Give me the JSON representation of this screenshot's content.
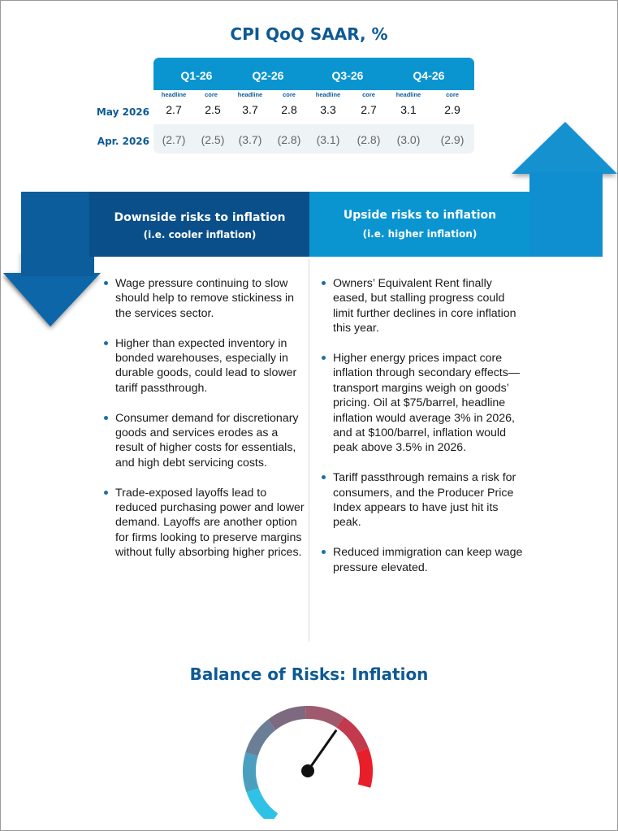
{
  "table": {
    "title": "CPI QoQ SAAR, %",
    "quarters": [
      "Q1-26",
      "Q2-26",
      "Q3-26",
      "Q4-26"
    ],
    "sub_headers": [
      "headline",
      "core",
      "headline",
      "core",
      "headline",
      "core",
      "headline",
      "core"
    ],
    "rows": [
      {
        "label": "May 2026",
        "values": [
          "2.7",
          "2.5",
          "3.7",
          "2.8",
          "3.3",
          "2.7",
          "3.1",
          "2.9"
        ]
      },
      {
        "label": "Apr. 2026",
        "values": [
          "(2.7)",
          "(2.5)",
          "(3.7)",
          "(2.8)",
          "(3.1)",
          "(2.8)",
          "(3.0)",
          "(2.9)"
        ]
      }
    ]
  },
  "downside": {
    "title": "Downside risks to inflation",
    "subtitle": "(i.e. cooler inflation)",
    "items": [
      "Wage pressure continuing to slow should help to remove stickiness in the services sector.",
      "Higher than expected inventory in bonded warehouses, especially in durable goods, could lead to slower tariff passthrough.",
      "Consumer demand for discretionary goods and services erodes as a result of higher costs for essentials, and high debt servicing costs.",
      "Trade-exposed layoffs lead to reduced purchasing power and lower demand. Layoffs are another option for firms looking to preserve margins without fully absorbing higher prices."
    ]
  },
  "upside": {
    "title": "Upside risks to inflation",
    "subtitle": "(i.e. higher inflation)",
    "items": [
      "Owners’ Equivalent Rent finally eased, but stalling progress could limit further declines in core inflation this year.",
      "Higher energy prices impact core inflation through secondary effects—transport margins weigh on goods’ pricing. Oil at $75/barrel, headline inflation would average 3% in 2026, and at $100/barrel, inflation would peak above 3.5% in 2026.",
      "Tariff passthrough remains a risk for consumers, and the Producer Price Index appears to have just hit its peak.",
      "Reduced immigration can keep wage pressure elevated."
    ]
  },
  "gauge": {
    "title": "Balance of Risks: Inflation",
    "level": 0.72,
    "colors": [
      "#2fc2e6",
      "#4a9fbf",
      "#6a7f96",
      "#7e6a80",
      "#a05a6e",
      "#c33a4f",
      "#e81f2a"
    ]
  },
  "colors": {
    "brand_dark": "#0d5a94",
    "downside_panel": "#0a4f8a",
    "upside_panel": "#0a95d1"
  }
}
